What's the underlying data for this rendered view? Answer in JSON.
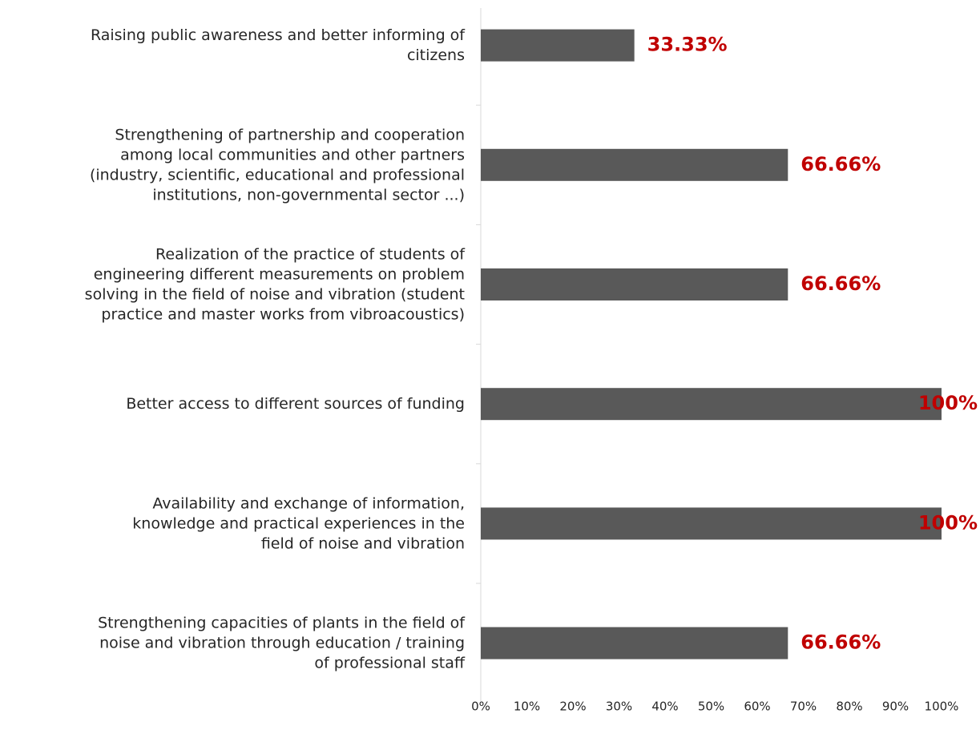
{
  "chart_data": {
    "type": "barh",
    "categories": [
      "Raising public awareness and better informing of\ncitizens",
      "Strengthening of partnership and cooperation\namong local communities and other partners\n(industry, scientific, educational and professional\ninstitutions, non-governmental sector ...)",
      "Realization of the practice of students of\nengineering different measurements on problem\nsolving in the field of noise and vibration (student\npractice and master works from vibroacoustics)",
      "Better access to different sources of funding",
      "Availability and exchange of information,\nknowledge and practical experiences in the\nfield of noise and vibration",
      "Strengthening capacities of plants in the field of\nnoise and vibration through education / training\nof professional staff"
    ],
    "values": [
      33.33,
      66.66,
      66.66,
      100,
      100,
      66.66
    ],
    "value_labels": [
      "33.33%",
      "66.66%",
      "66.66%",
      "100%",
      "100%",
      "66.66%"
    ],
    "color": "#595959",
    "label_color": "#c00000",
    "xlim": [
      0,
      100
    ],
    "xticks": [
      {
        "value": 0,
        "label": "0%"
      },
      {
        "value": 10,
        "label": "10%"
      },
      {
        "value": 20,
        "label": "20%"
      },
      {
        "value": 30,
        "label": "30%"
      },
      {
        "value": 40,
        "label": "40%"
      },
      {
        "value": 50,
        "label": "50%"
      },
      {
        "value": 60,
        "label": "60%"
      },
      {
        "value": 70,
        "label": "70%"
      },
      {
        "value": 80,
        "label": "80%"
      },
      {
        "value": 90,
        "label": "90%"
      },
      {
        "value": 100,
        "label": "100%"
      }
    ],
    "grid": false
  }
}
